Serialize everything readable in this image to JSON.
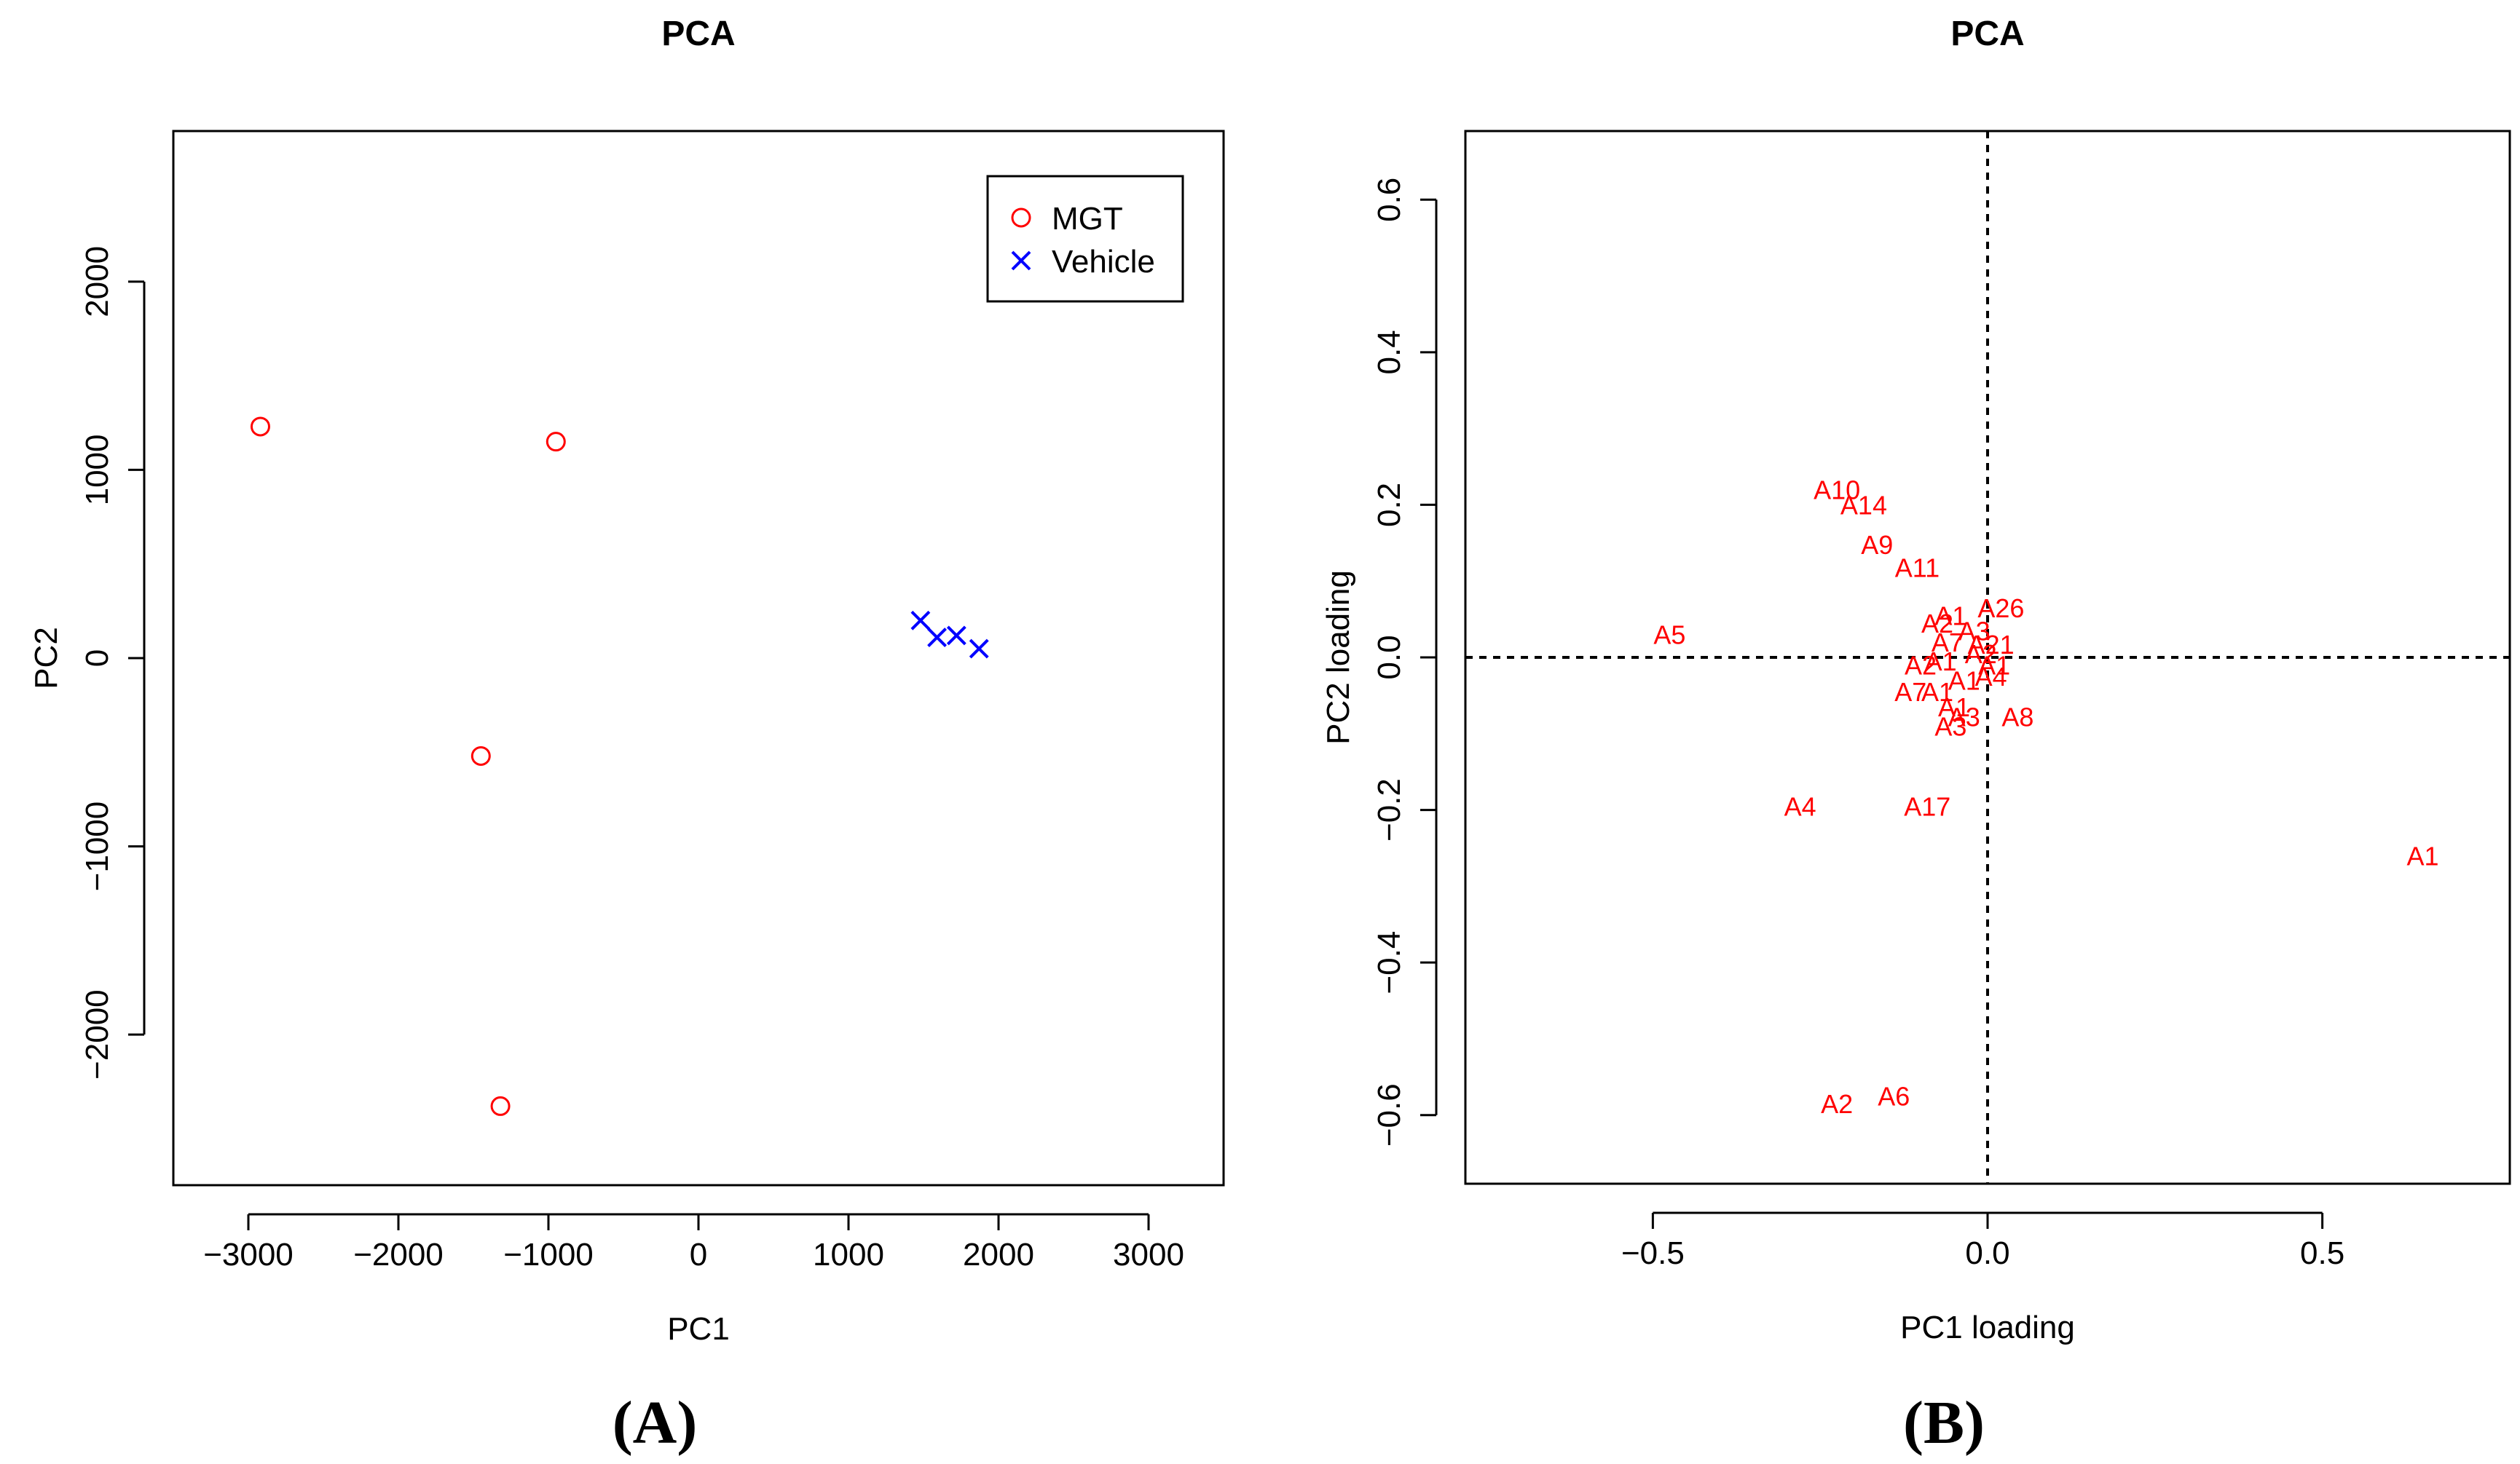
{
  "colors": {
    "mgt": "#ff0000",
    "vehicle": "#0000ff",
    "axis": "#000000",
    "background": "#ffffff"
  },
  "chart_data": [
    {
      "type": "scatter",
      "panel_label": "(A)",
      "title": "PCA",
      "xlabel": "PC1",
      "ylabel": "PC2",
      "xlim": [
        -3500,
        3500
      ],
      "ylim": [
        -2800,
        2800
      ],
      "xticks": [
        -3000,
        -2000,
        -1000,
        0,
        1000,
        2000,
        3000
      ],
      "yticks": [
        -2000,
        -1000,
        0,
        1000,
        2000
      ],
      "xtick_labels": [
        "−3000",
        "−2000",
        "−1000",
        "0",
        "1000",
        "2000",
        "3000"
      ],
      "ytick_labels": [
        "−2000",
        "−1000",
        "0",
        "1000",
        "2000"
      ],
      "legend": {
        "position": "top-right",
        "entries": [
          {
            "name": "MGT",
            "marker": "circle"
          },
          {
            "name": "Vehicle",
            "marker": "cross"
          }
        ]
      },
      "series": [
        {
          "name": "MGT",
          "marker": "circle",
          "points": [
            [
              -2920,
              1230
            ],
            [
              -950,
              1150
            ],
            [
              -1450,
              -520
            ],
            [
              -1320,
              -2380
            ]
          ]
        },
        {
          "name": "Vehicle",
          "marker": "cross",
          "points": [
            [
              1480,
              200
            ],
            [
              1590,
              110
            ],
            [
              1720,
              120
            ],
            [
              1870,
              50
            ]
          ]
        }
      ]
    },
    {
      "type": "scatter",
      "panel_label": "(B)",
      "title": "PCA",
      "xlabel": "PC1 loading",
      "ylabel": "PC2 loading",
      "xlim": [
        -0.78,
        0.78
      ],
      "ylim": [
        -0.69,
        0.69
      ],
      "xticks": [
        -0.5,
        0.0,
        0.5
      ],
      "yticks": [
        -0.6,
        -0.4,
        -0.2,
        0.0,
        0.2,
        0.4,
        0.6
      ],
      "xtick_labels": [
        "−0.5",
        "0.0",
        "0.5"
      ],
      "ytick_labels": [
        "−0.6",
        "−0.4",
        "−0.2",
        "0.0",
        "0.2",
        "0.4",
        "0.6"
      ],
      "reference_lines": {
        "x": 0,
        "y": 0,
        "style": "dotted"
      },
      "labels": [
        {
          "text": "A1",
          "x": 0.65,
          "y": -0.26
        },
        {
          "text": "A2",
          "x": -0.225,
          "y": -0.585
        },
        {
          "text": "A6",
          "x": -0.14,
          "y": -0.575
        },
        {
          "text": "A4",
          "x": -0.28,
          "y": -0.195
        },
        {
          "text": "A17",
          "x": -0.09,
          "y": -0.195
        },
        {
          "text": "A5",
          "x": -0.475,
          "y": 0.03
        },
        {
          "text": "A10",
          "x": -0.225,
          "y": 0.22
        },
        {
          "text": "A14",
          "x": -0.185,
          "y": 0.2
        },
        {
          "text": "A9",
          "x": -0.165,
          "y": 0.148
        },
        {
          "text": "A11",
          "x": -0.105,
          "y": 0.118
        },
        {
          "text": "A26",
          "x": 0.02,
          "y": 0.065
        },
        {
          "text": "A8",
          "x": 0.045,
          "y": -0.078
        },
        {
          "text": "A21",
          "x": 0.005,
          "y": 0.017
        },
        {
          "text": "A1",
          "x": -0.055,
          "y": 0.055
        },
        {
          "text": "A2",
          "x": -0.075,
          "y": 0.045
        },
        {
          "text": "A3",
          "x": -0.02,
          "y": 0.035
        },
        {
          "text": "A7",
          "x": -0.06,
          "y": 0.02
        },
        {
          "text": "A2",
          "x": -0.1,
          "y": -0.01
        },
        {
          "text": "A1",
          "x": -0.07,
          "y": -0.005
        },
        {
          "text": "A4",
          "x": 0.005,
          "y": -0.025
        },
        {
          "text": "A1",
          "x": -0.035,
          "y": -0.03
        },
        {
          "text": "A1",
          "x": -0.075,
          "y": -0.045
        },
        {
          "text": "A7",
          "x": -0.115,
          "y": -0.045
        },
        {
          "text": "A1",
          "x": -0.05,
          "y": -0.065
        },
        {
          "text": "A3",
          "x": -0.035,
          "y": -0.078
        },
        {
          "text": "A3",
          "x": -0.055,
          "y": -0.09
        },
        {
          "text": "A2",
          "x": -0.01,
          "y": 0.005
        },
        {
          "text": "A1",
          "x": 0.01,
          "y": -0.01
        }
      ]
    }
  ]
}
